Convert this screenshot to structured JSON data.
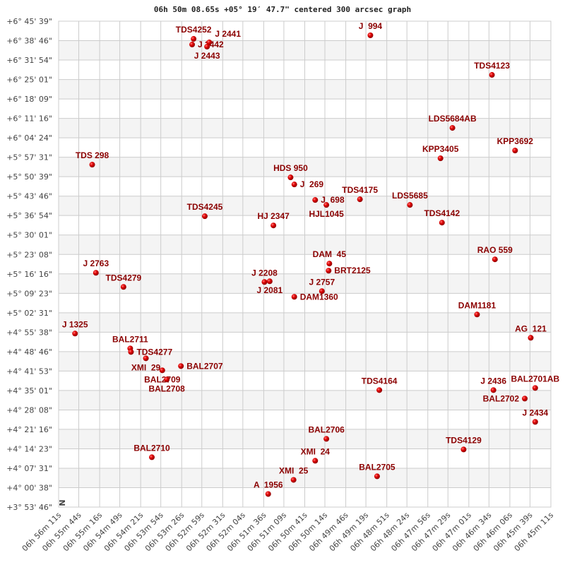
{
  "chart_data": {
    "type": "scatter",
    "title": "06h 50m 08.65s +05° 19′ 47.7\" centered 300 arcsec graph",
    "x_axis": {
      "quantity": "right ascension",
      "reversed": true,
      "range": [
        "06h 56m 11s",
        "06h 45m 11s"
      ],
      "tick_labels": [
        "06h 56m 11s",
        "06h 55m 44s",
        "06h 55m 16s",
        "06h 54m 49s",
        "06h 54m 21s",
        "06h 53m 54s",
        "06h 53m 26s",
        "06h 52m 59s",
        "06h 52m 31s",
        "06h 52m 04s",
        "06h 51m 36s",
        "06h 51m 09s",
        "06h 50m 41s",
        "06h 50m 14s",
        "06h 49m 46s",
        "06h 49m 19s",
        "06h 48m 51s",
        "06h 48m 24s",
        "06h 47m 56s",
        "06h 47m 29s",
        "06h 47m 01s",
        "06h 46m 34s",
        "06h 46m 06s",
        "06h 45m 39s",
        "06h 45m 11s"
      ]
    },
    "y_axis": {
      "quantity": "declination",
      "range": [
        "+3° 53' 46\"",
        "+6° 45' 39\""
      ],
      "tick_labels": [
        "+6° 45' 39\"",
        "+6° 38' 46\"",
        "+6° 31' 54\"",
        "+6° 25' 01\"",
        "+6° 18' 09\"",
        "+6° 11' 16\"",
        "+6° 04' 24\"",
        "+5° 57' 31\"",
        "+5° 50' 39\"",
        "+5° 43' 46\"",
        "+5° 36' 54\"",
        "+5° 30' 01\"",
        "+5° 23' 08\"",
        "+5° 16' 16\"",
        "+5° 09' 23\"",
        "+5° 02' 31\"",
        "+4° 55' 38\"",
        "+4° 48' 46\"",
        "+4° 41' 53\"",
        "+4° 35' 01\"",
        "+4° 28' 08\"",
        "+4° 21' 16\"",
        "+4° 14' 23\"",
        "+4° 07' 31\"",
        "+4° 00' 38\"",
        "+3° 53' 46\""
      ]
    },
    "grid": true,
    "alternating_row_bands": true,
    "orientation_marker": "N",
    "colors": {
      "point": "#dd0000",
      "label": "#8b0000",
      "grid": "#cccccc",
      "band": "#f4f4f4"
    },
    "points": [
      {
        "name": "TDS4252",
        "ra": "06h 53m 10s",
        "dec": "+6° 39' 24\""
      },
      {
        "name": "J 2442",
        "ra": "06h 53m 12s",
        "dec": "+6° 37' 24\""
      },
      {
        "name": "J 2441",
        "ra": "06h 52m 49s",
        "dec": "+6° 38' 09\""
      },
      {
        "name": "J 2443",
        "ra": "06h 52m 52s",
        "dec": "+6° 36' 39\""
      },
      {
        "name": "J  994",
        "ra": "06h 49m 13s",
        "dec": "+6° 40' 39\""
      },
      {
        "name": "TDS4123",
        "ra": "06h 46m 30s",
        "dec": "+6° 26' 39\""
      },
      {
        "name": "LDS5684AB",
        "ra": "06h 47m 23s",
        "dec": "+6° 07' 54\""
      },
      {
        "name": "KPP3405",
        "ra": "06h 47m 39s",
        "dec": "+5° 57' 09\""
      },
      {
        "name": "KPP3692",
        "ra": "06h 45m 59s",
        "dec": "+5° 59' 54\""
      },
      {
        "name": "TDS 298",
        "ra": "06h 55m 26s",
        "dec": "+5° 54' 54\""
      },
      {
        "name": "HDS 950",
        "ra": "06h 51m 00s",
        "dec": "+5° 50' 24\""
      },
      {
        "name": "J  269",
        "ra": "06h 50m 55s",
        "dec": "+5° 47' 54\""
      },
      {
        "name": "J  698",
        "ra": "06h 50m 27s",
        "dec": "+5° 42' 24\""
      },
      {
        "name": "HJL1045",
        "ra": "06h 50m 12s",
        "dec": "+5° 40' 39\""
      },
      {
        "name": "TDS4175",
        "ra": "06h 49m 27s",
        "dec": "+5° 42' 39\""
      },
      {
        "name": "LDS5685",
        "ra": "06h 48m 20s",
        "dec": "+5° 40' 39\""
      },
      {
        "name": "TDS4142",
        "ra": "06h 47m 37s",
        "dec": "+5° 34' 24\""
      },
      {
        "name": "TDS4245",
        "ra": "06h 52m 55s",
        "dec": "+5° 36' 39\""
      },
      {
        "name": "HJ 2347",
        "ra": "06h 51m 23s",
        "dec": "+5° 33' 24\""
      },
      {
        "name": "DAM  45",
        "ra": "06h 50m 08s",
        "dec": "+5° 19' 54\""
      },
      {
        "name": "BRT2125",
        "ra": "06h 50m 09s",
        "dec": "+5° 17' 24\""
      },
      {
        "name": "J 2208",
        "ra": "06h 51m 35s",
        "dec": "+5° 13' 24\""
      },
      {
        "name": "J 2081",
        "ra": "06h 51m 28s",
        "dec": "+5° 13' 39\""
      },
      {
        "name": "DAM1360",
        "ra": "06h 50m 55s",
        "dec": "+5° 08' 09\""
      },
      {
        "name": "J 2757",
        "ra": "06h 50m 18s",
        "dec": "+5° 10' 09\""
      },
      {
        "name": "RAO 559",
        "ra": "06h 46m 26s",
        "dec": "+5° 21' 24\""
      },
      {
        "name": "J 2763",
        "ra": "06h 55m 21s",
        "dec": "+5° 16' 39\""
      },
      {
        "name": "TDS4279",
        "ra": "06h 54m 44s",
        "dec": "+5° 11' 39\""
      },
      {
        "name": "DAM1181",
        "ra": "06h 46m 50s",
        "dec": "+5° 01' 54\""
      },
      {
        "name": "J 1325",
        "ra": "06h 55m 49s",
        "dec": "+4° 55' 09\""
      },
      {
        "name": "AG  121",
        "ra": "06h 45m 38s",
        "dec": "+4° 53' 39\""
      },
      {
        "name": "BAL2711",
        "ra": "06h 54m 35s",
        "dec": "+4° 49' 54\""
      },
      {
        "name": "TDS4277",
        "ra": "06h 54m 34s",
        "dec": "+4° 48' 39\""
      },
      {
        "name": "XMI  29",
        "ra": "06h 54m 14s",
        "dec": "+4° 46' 24\""
      },
      {
        "name": "BAL2707",
        "ra": "06h 53m 27s",
        "dec": "+4° 43' 39\""
      },
      {
        "name": "BAL2709",
        "ra": "06h 53m 52s",
        "dec": "+4° 42' 09\""
      },
      {
        "name": "BAL2708",
        "ra": "06h 53m 46s",
        "dec": "+4° 38' 54\""
      },
      {
        "name": "TDS4164",
        "ra": "06h 49m 01s",
        "dec": "+4° 35' 09\""
      },
      {
        "name": "J 2436",
        "ra": "06h 46m 28s",
        "dec": "+4° 35' 09\""
      },
      {
        "name": "BAL2701AB",
        "ra": "06h 45m 32s",
        "dec": "+4° 35' 54\""
      },
      {
        "name": "BAL2702",
        "ra": "06h 45m 46s",
        "dec": "+4° 32' 09\""
      },
      {
        "name": "J 2434",
        "ra": "06h 45m 32s",
        "dec": "+4° 23' 54\""
      },
      {
        "name": "BAL2706",
        "ra": "06h 50m 12s",
        "dec": "+4° 17' 54\""
      },
      {
        "name": "TDS4129",
        "ra": "06h 47m 08s",
        "dec": "+4° 14' 09\""
      },
      {
        "name": "BAL2710",
        "ra": "06h 54m 06s",
        "dec": "+4° 11' 24\""
      },
      {
        "name": "XMI  24",
        "ra": "06h 50m 27s",
        "dec": "+4° 10' 09\""
      },
      {
        "name": "BAL2705",
        "ra": "06h 49m 04s",
        "dec": "+4° 04' 39\""
      },
      {
        "name": "XMI  25",
        "ra": "06h 50m 56s",
        "dec": "+4° 03' 24\""
      },
      {
        "name": "A  1956",
        "ra": "06h 51m 30s",
        "dec": "+3° 58' 24\""
      }
    ]
  }
}
